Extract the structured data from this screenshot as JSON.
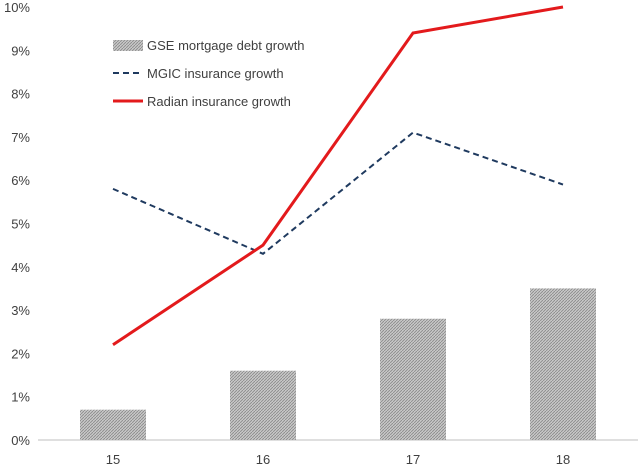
{
  "chart_data": {
    "type": "bar+line",
    "categories": [
      "15",
      "16",
      "17",
      "18"
    ],
    "ylim": [
      0,
      10
    ],
    "yticks": [
      0,
      1,
      2,
      3,
      4,
      5,
      6,
      7,
      8,
      9,
      10
    ],
    "ytick_labels": [
      "0%",
      "1%",
      "2%",
      "3%",
      "4%",
      "5%",
      "6%",
      "7%",
      "8%",
      "9%",
      "10%"
    ],
    "y_unit": "%",
    "grid": false,
    "legend_position": "top-left",
    "series": [
      {
        "name": "GSE mortgage debt growth",
        "kind": "bar",
        "style": "hatched",
        "color": "#a6a6a6",
        "values": [
          0.7,
          1.6,
          2.8,
          3.5
        ]
      },
      {
        "name": "MGIC insurance growth",
        "kind": "line",
        "style": "dashed",
        "color": "#1f3a5f",
        "values": [
          5.8,
          4.3,
          7.1,
          5.9
        ]
      },
      {
        "name": "Radian insurance growth",
        "kind": "line",
        "style": "solid",
        "color": "#e31a1c",
        "values": [
          2.2,
          4.5,
          9.4,
          10.0
        ]
      }
    ]
  }
}
